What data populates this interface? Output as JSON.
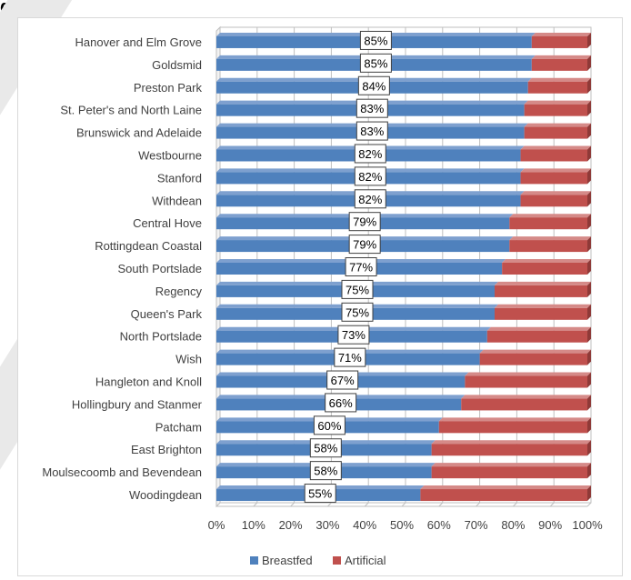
{
  "header_fragment": "g",
  "chart_data": {
    "type": "bar",
    "stacked": true,
    "percent_stacked": true,
    "orientation": "horizontal",
    "categories": [
      "Hanover and Elm Grove",
      "Goldsmid",
      "Preston Park",
      "St. Peter's and North Laine",
      "Brunswick and Adelaide",
      "Westbourne",
      "Stanford",
      "Withdean",
      "Central Hove",
      "Rottingdean Coastal",
      "South Portslade",
      "Regency",
      "Queen's Park",
      "North Portslade",
      "Wish",
      "Hangleton and Knoll",
      "Hollingbury and Stanmer",
      "Patcham",
      "East Brighton",
      "Moulsecoomb and Bevendean",
      "Woodingdean"
    ],
    "series": [
      {
        "name": "Breastfed",
        "color": "#4f81bd",
        "values": [
          85,
          85,
          84,
          83,
          83,
          82,
          82,
          82,
          79,
          79,
          77,
          75,
          75,
          73,
          71,
          67,
          66,
          60,
          58,
          58,
          55
        ],
        "data_labels": [
          "85%",
          "85%",
          "84%",
          "83%",
          "83%",
          "82%",
          "82%",
          "82%",
          "79%",
          "79%",
          "77%",
          "75%",
          "75%",
          "73%",
          "71%",
          "67%",
          "66%",
          "60%",
          "58%",
          "58%",
          "55%"
        ]
      },
      {
        "name": "Artificial",
        "color": "#c0504d",
        "values": [
          15,
          15,
          16,
          17,
          17,
          18,
          18,
          18,
          21,
          21,
          23,
          25,
          25,
          27,
          29,
          33,
          34,
          40,
          42,
          42,
          45
        ]
      }
    ],
    "x_ticks": [
      "0%",
      "10%",
      "20%",
      "30%",
      "40%",
      "50%",
      "60%",
      "70%",
      "80%",
      "90%",
      "100%"
    ],
    "xlim": [
      0,
      100
    ],
    "gridlines": "vertical",
    "legend_position": "bottom",
    "title": "",
    "xlabel": "",
    "ylabel": ""
  }
}
